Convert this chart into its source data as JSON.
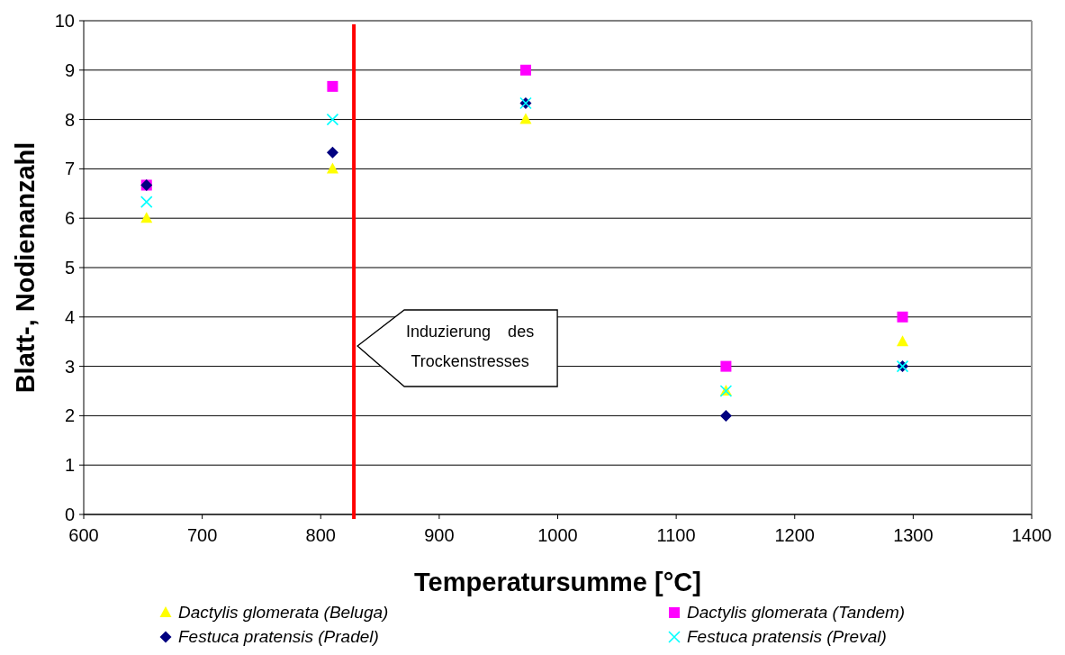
{
  "chart_data": {
    "type": "scatter",
    "xlabel": "Temperatursumme [°C]",
    "ylabel": "Blatt-, Nodienanzahl",
    "xlim": [
      600,
      1400
    ],
    "xticks": [
      600,
      700,
      800,
      900,
      1000,
      1100,
      1200,
      1300,
      1400
    ],
    "ylim": [
      0,
      10
    ],
    "yticks": [
      0,
      1,
      2,
      3,
      4,
      5,
      6,
      7,
      8,
      9,
      10
    ],
    "grid": "y",
    "legend": "bottom",
    "x": [
      653,
      810,
      973,
      1142,
      1291
    ],
    "series": [
      {
        "name": "Dactylis glomerata (Beluga)",
        "color": "#ffff00",
        "marker": "triangle",
        "values": [
          6,
          7,
          8,
          2.5,
          3.5
        ]
      },
      {
        "name": "Dactylis glomerata (Tandem)",
        "color": "#ff00ff",
        "marker": "square",
        "values": [
          6.67,
          8.67,
          9,
          3,
          4
        ]
      },
      {
        "name": "Festuca pratensis (Pradel)",
        "color": "#000080",
        "marker": "diamond",
        "values": [
          6.67,
          7.33,
          8.33,
          2,
          3
        ]
      },
      {
        "name": "Festuca pratensis (Preval)",
        "color": "#00ffff",
        "marker": "cross",
        "values": [
          6.33,
          8,
          8.33,
          2.5,
          3
        ]
      }
    ],
    "ref_lines": [
      {
        "axis": "x",
        "value": 828,
        "color": "#ff0000"
      }
    ],
    "annotations": [
      "Induzierung des Trockenstresses"
    ]
  }
}
